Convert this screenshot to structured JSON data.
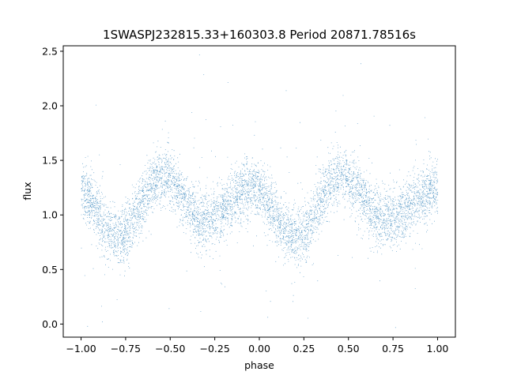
{
  "chart_data": {
    "type": "scatter",
    "title": "1SWASPJ232815.33+160303.8 Period 20871.78516s",
    "xlabel": "phase",
    "ylabel": "flux",
    "xlim": [
      -1.1,
      1.1
    ],
    "ylim": [
      -0.12,
      2.55
    ],
    "xticks": [
      -1.0,
      -0.75,
      -0.5,
      -0.25,
      0.0,
      0.25,
      0.5,
      0.75,
      1.0
    ],
    "xtick_labels": [
      "−1.00",
      "−0.75",
      "−0.50",
      "−0.25",
      "0.00",
      "0.25",
      "0.50",
      "0.75",
      "1.00"
    ],
    "yticks": [
      0.0,
      0.5,
      1.0,
      1.5,
      2.0,
      2.5
    ],
    "ytick_labels": [
      "0.0",
      "0.5",
      "1.0",
      "1.5",
      "2.0",
      "2.5"
    ],
    "grid": false,
    "point_color": "#1f77b4",
    "x_range_of_points": [
      -1.0,
      1.0
    ],
    "trend": {
      "phase": [
        -1.0,
        -0.8,
        -0.55,
        -0.3,
        -0.05,
        0.2,
        0.45,
        0.7,
        1.0
      ],
      "flux": [
        1.2,
        0.8,
        1.35,
        0.95,
        1.25,
        0.8,
        1.35,
        0.95,
        1.25
      ]
    },
    "scatter_sigma": 0.13,
    "outlier_fraction": 0.03,
    "point_count": 18000
  }
}
